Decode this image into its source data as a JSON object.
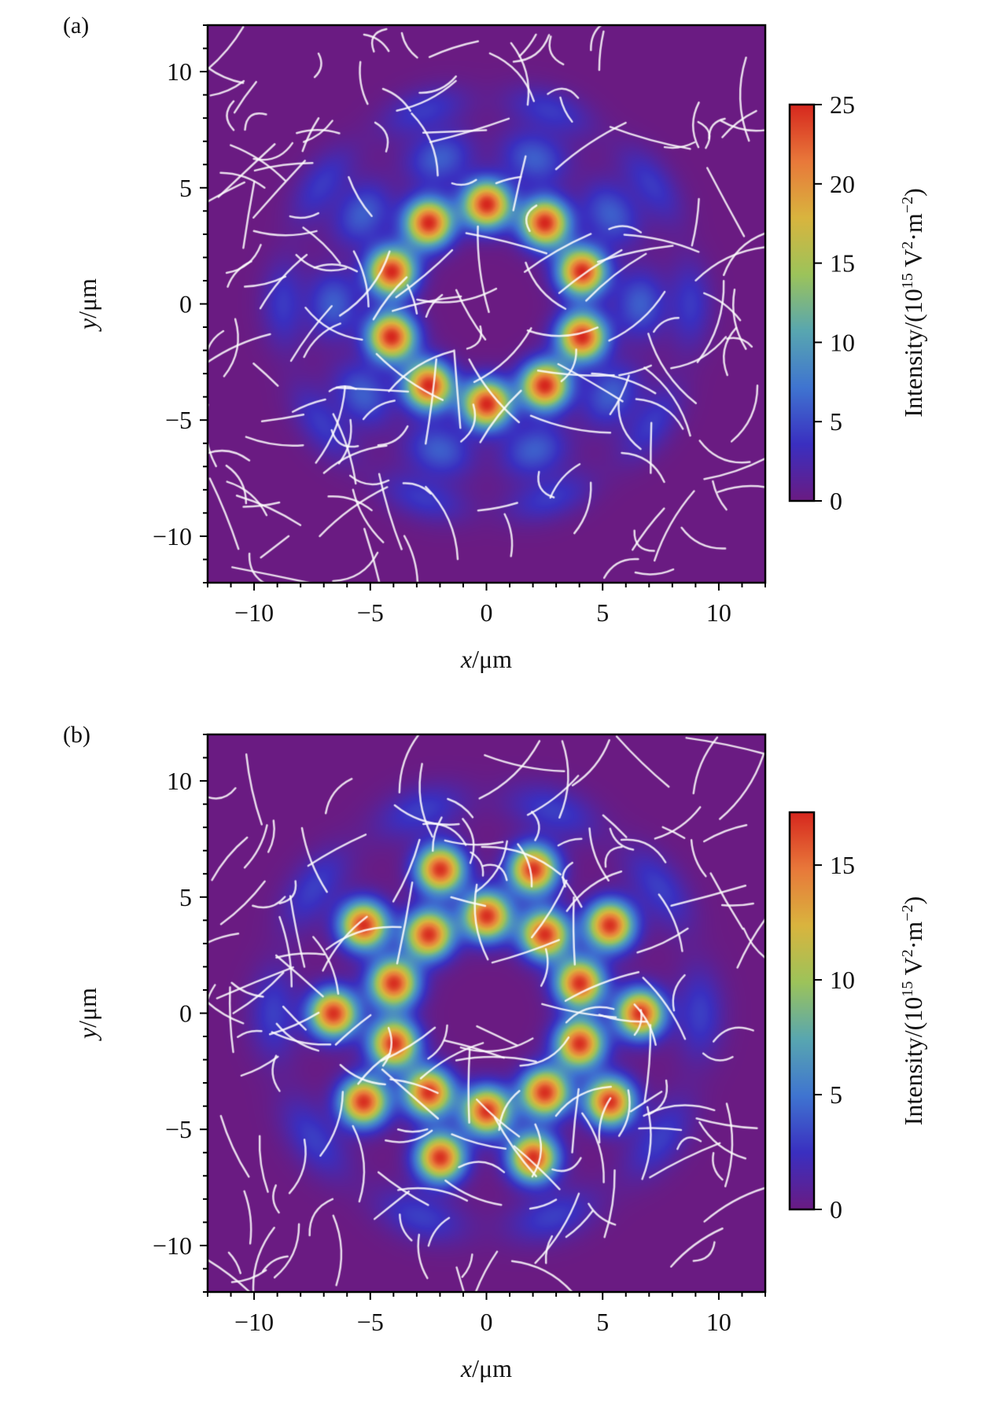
{
  "chart_data": [
    {
      "type": "heatmap",
      "panel_label": "(a)",
      "xlabel_var": "x",
      "xlabel_unit": "/μm",
      "ylabel_var": "y",
      "ylabel_unit": "/μm",
      "xlim": [
        -12,
        12
      ],
      "ylim": [
        -12,
        12
      ],
      "xticks": [
        -10,
        -5,
        0,
        5,
        10
      ],
      "yticks": [
        -10,
        -5,
        0,
        5,
        10
      ],
      "xtick_labels": [
        "−10",
        "−5",
        "0",
        "5",
        "10"
      ],
      "ytick_labels": [
        "−10",
        "−5",
        "0",
        "5",
        "10"
      ],
      "colorbar": {
        "label": "Intensity/(10",
        "label_exp": "15",
        "label_mid": " V",
        "label_sq": "2",
        "label_dot": "·m",
        "label_neg": "−2",
        "label_end": ")",
        "range": [
          0,
          25
        ],
        "ticks": [
          0,
          5,
          10,
          15,
          20,
          25
        ],
        "tick_labels": [
          "0",
          "5",
          "10",
          "15",
          "20",
          "25"
        ]
      },
      "colormap": [
        "#6a1b82",
        "#3a2fc0",
        "#3f74d0",
        "#58a6b0",
        "#9cc35a",
        "#d9b43e",
        "#e8783a",
        "#d6271e"
      ],
      "overlay": "white field streamlines with arrows",
      "peaks": [
        {
          "x": 0,
          "y": 4.3,
          "value": 25
        },
        {
          "x": 2.5,
          "y": 3.5,
          "value": 25
        },
        {
          "x": 4.1,
          "y": 1.4,
          "value": 25
        },
        {
          "x": 4.1,
          "y": -1.4,
          "value": 25
        },
        {
          "x": 2.5,
          "y": -3.5,
          "value": 25
        },
        {
          "x": 0,
          "y": -4.3,
          "value": 25
        },
        {
          "x": -2.5,
          "y": -3.5,
          "value": 25
        },
        {
          "x": -4.1,
          "y": -1.4,
          "value": 25
        },
        {
          "x": -4.1,
          "y": 1.4,
          "value": 25
        },
        {
          "x": -2.5,
          "y": 3.5,
          "value": 25
        }
      ]
    },
    {
      "type": "heatmap",
      "panel_label": "(b)",
      "xlabel_var": "x",
      "xlabel_unit": "/μm",
      "ylabel_var": "y",
      "ylabel_unit": "/μm",
      "xlim": [
        -12,
        12
      ],
      "ylim": [
        -12,
        12
      ],
      "xticks": [
        -10,
        -5,
        0,
        5,
        10
      ],
      "yticks": [
        -10,
        -5,
        0,
        5,
        10
      ],
      "xtick_labels": [
        "−10",
        "−5",
        "0",
        "5",
        "10"
      ],
      "ytick_labels": [
        "−10",
        "−5",
        "0",
        "5",
        "10"
      ],
      "colorbar": {
        "label": "Intensity/(10",
        "label_exp": "15",
        "label_mid": " V",
        "label_sq": "2",
        "label_dot": "·m",
        "label_neg": "−2",
        "label_end": ")",
        "range": [
          0,
          17.3
        ],
        "ticks": [
          0,
          5,
          10,
          15
        ],
        "tick_labels": [
          "0",
          "5",
          "10",
          "15"
        ]
      },
      "colormap": [
        "#6a1b82",
        "#3a2fc0",
        "#3f74d0",
        "#58a6b0",
        "#9cc35a",
        "#d9b43e",
        "#e8783a",
        "#d6271e"
      ],
      "overlay": "white field streamlines with arrows",
      "peaks": [
        {
          "x": 0,
          "y": 4.2,
          "value": 17
        },
        {
          "x": 2.5,
          "y": 3.4,
          "value": 17
        },
        {
          "x": 4.0,
          "y": 1.3,
          "value": 17
        },
        {
          "x": 4.0,
          "y": -1.3,
          "value": 17
        },
        {
          "x": 2.5,
          "y": -3.4,
          "value": 17
        },
        {
          "x": 0,
          "y": -4.2,
          "value": 17
        },
        {
          "x": -2.5,
          "y": -3.4,
          "value": 17
        },
        {
          "x": -4.0,
          "y": -1.3,
          "value": 17
        },
        {
          "x": -4.0,
          "y": 1.3,
          "value": 17
        },
        {
          "x": -2.5,
          "y": 3.4,
          "value": 17
        },
        {
          "x": 6.6,
          "y": 0,
          "value": 17
        },
        {
          "x": 5.3,
          "y": 3.8,
          "value": 17
        },
        {
          "x": 2.0,
          "y": 6.2,
          "value": 17
        },
        {
          "x": -2.0,
          "y": 6.2,
          "value": 17
        },
        {
          "x": -5.3,
          "y": 3.8,
          "value": 17
        },
        {
          "x": -6.6,
          "y": 0,
          "value": 17
        },
        {
          "x": -5.3,
          "y": -3.8,
          "value": 17
        },
        {
          "x": -2.0,
          "y": -6.2,
          "value": 17
        },
        {
          "x": 2.0,
          "y": -6.2,
          "value": 17
        },
        {
          "x": 5.3,
          "y": -3.8,
          "value": 17
        }
      ]
    }
  ]
}
